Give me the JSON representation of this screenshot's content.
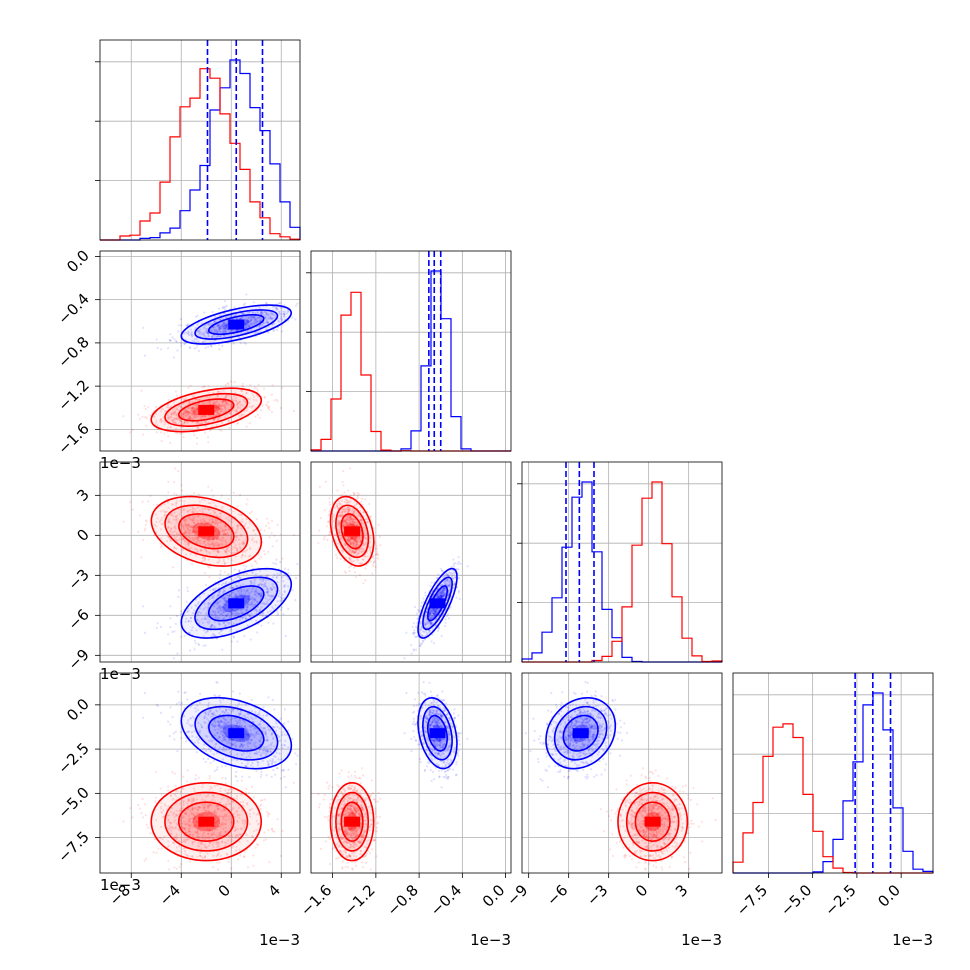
{
  "chart_data": {
    "type": "corner",
    "series": [
      {
        "name": "",
        "color": "#0000ff",
        "mean": [
          0.4,
          -0.63,
          -5.1,
          -1.6
        ],
        "sd": [
          2.2,
          0.09,
          1.3,
          1.0
        ],
        "corr": [
          [
            1,
            0.6,
            0.55,
            -0.35
          ],
          [
            0.6,
            1,
            0.75,
            -0.3
          ],
          [
            0.55,
            0.75,
            1,
            0.2
          ],
          [
            -0.35,
            -0.3,
            0.2,
            1
          ]
        ],
        "quantiles": [
          [
            -1.9,
            0.4,
            2.5
          ],
          [
            -0.71,
            -0.66,
            -0.6
          ],
          [
            -6.2,
            -5.2,
            -4.1
          ],
          [
            -2.6,
            -1.6,
            -0.6
          ]
        ]
      },
      {
        "name": "",
        "color": "#ff0000",
        "mean": [
          -2.0,
          -1.42,
          0.3,
          -6.6
        ],
        "sd": [
          2.2,
          0.1,
          1.3,
          1.1
        ],
        "corr": [
          [
            1,
            0.45,
            -0.3,
            0.0
          ],
          [
            0.45,
            1,
            -0.3,
            0.0
          ],
          [
            -0.3,
            -0.3,
            1,
            0.0
          ],
          [
            0.0,
            0.0,
            0.0,
            1
          ]
        ]
      }
    ],
    "axes": [
      {
        "range": [
          -10.5,
          5.5
        ],
        "ticks": [
          -8,
          -4,
          0,
          4
        ],
        "tick_labels": [
          "−8",
          "−4",
          "0",
          "4"
        ],
        "offset": "1e−3"
      },
      {
        "range": [
          -1.8,
          0.05
        ],
        "ticks": [
          -1.6,
          -1.2,
          -0.8,
          -0.4,
          0.0
        ],
        "tick_labels": [
          "−1.6",
          "−1.2",
          "−0.8",
          "−0.4",
          "0.0"
        ],
        "offset": "1e−3"
      },
      {
        "range": [
          -9.5,
          5.5
        ],
        "ticks": [
          -9,
          -6,
          -3,
          0,
          3
        ],
        "tick_labels": [
          "−9",
          "−6",
          "−3",
          "0",
          "3"
        ],
        "offset": "1e−3"
      },
      {
        "range": [
          -9.5,
          1.8
        ],
        "ticks": [
          -7.5,
          -5.0,
          -2.5,
          0.0
        ],
        "tick_labels": [
          "−7.5",
          "−5.0",
          "−2.5",
          "0.0"
        ],
        "offset": "1e−3"
      }
    ],
    "hist_bins": 20,
    "quantile_line_color": "#0000ff",
    "grid": true
  }
}
